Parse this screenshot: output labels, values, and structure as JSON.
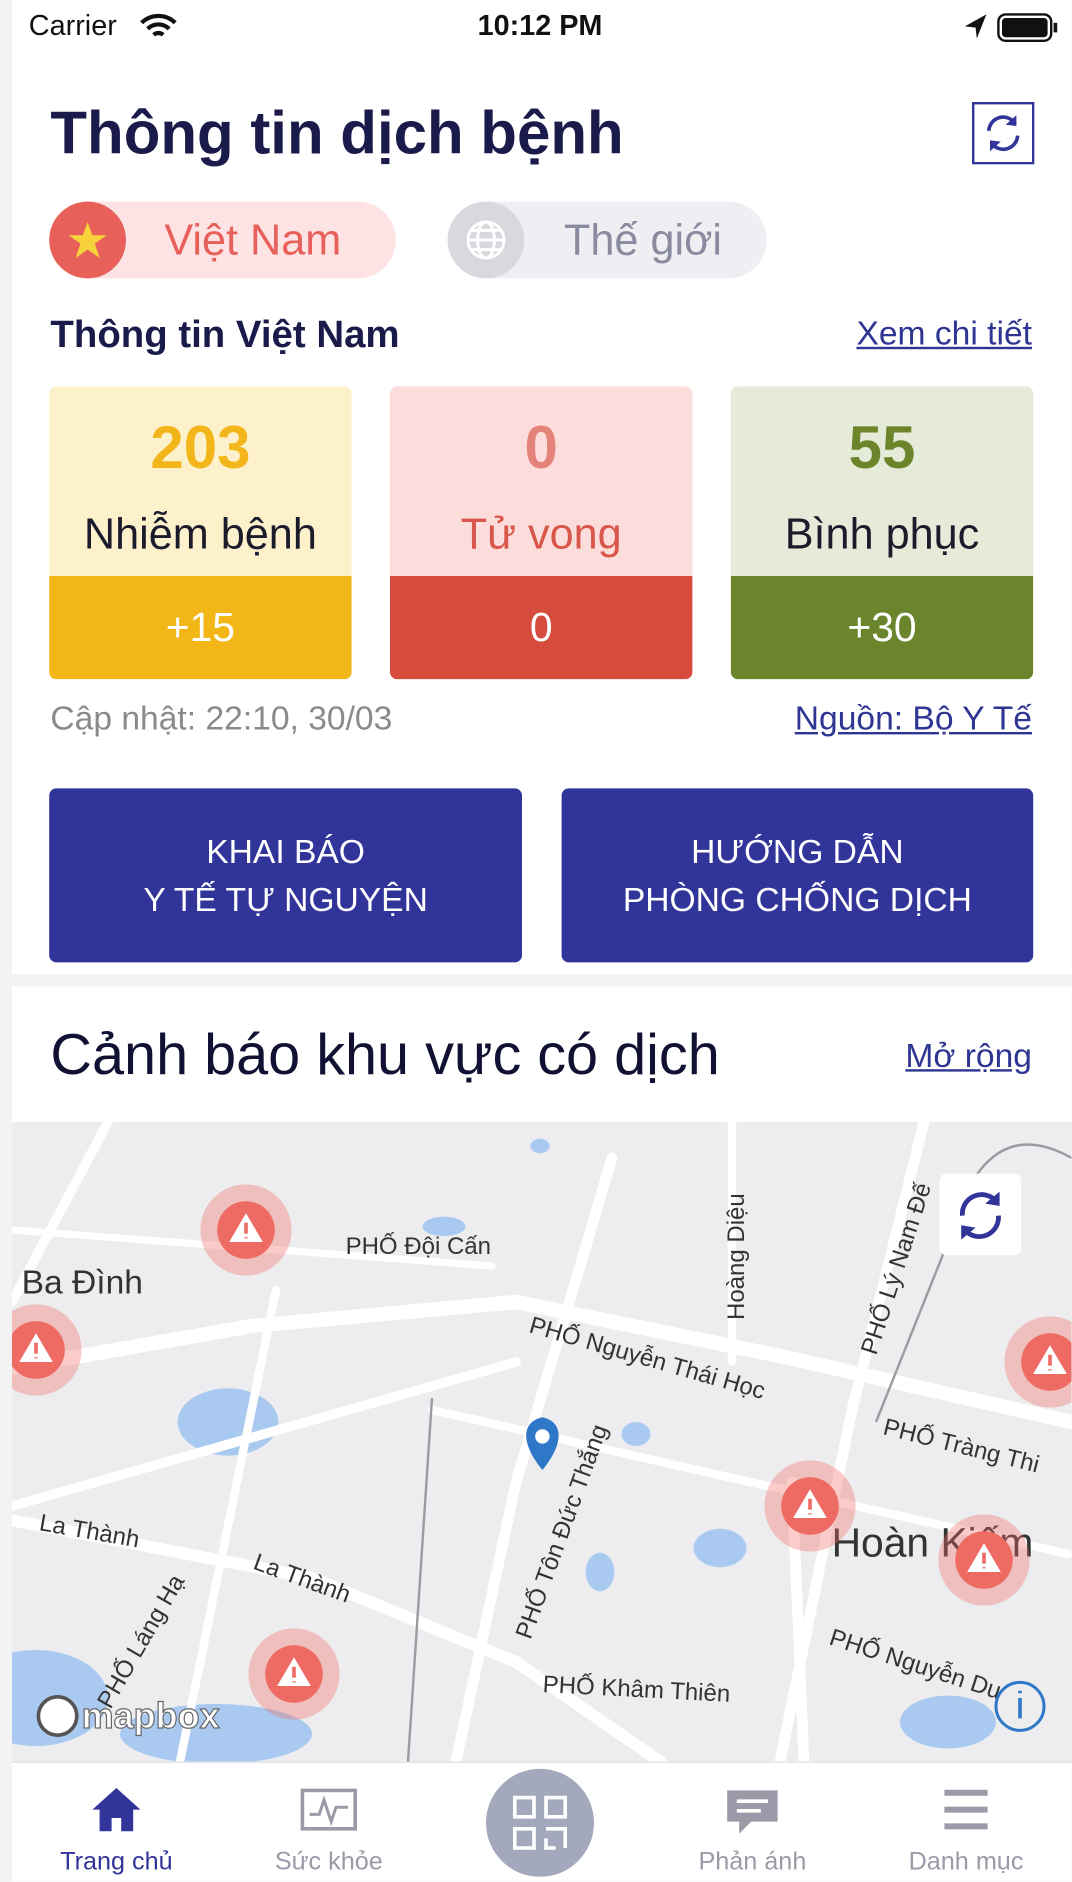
{
  "status_bar": {
    "carrier": "Carrier",
    "time": "10:12 PM"
  },
  "header": {
    "title": "Thông tin dịch bệnh"
  },
  "tabs": [
    "Việt Nam",
    "Thế giới"
  ],
  "summary": {
    "title": "Thông tin Việt Nam",
    "link": "Xem chi tiết",
    "stats": [
      {
        "value": 203,
        "label": "Nhiễm bệnh",
        "change": "+15"
      },
      {
        "value": 0,
        "label": "Tử vong",
        "change": "0"
      },
      {
        "value": 55,
        "label": "Bình phục",
        "change": "+30"
      }
    ],
    "updated": "Cập nhật: 22:10, 30/03",
    "source": "Nguồn: Bộ Y Tế"
  },
  "actions": [
    [
      "KHAI BÁO",
      "Y TẾ TỰ NGUYỆN"
    ],
    [
      "HƯỚNG DẪN",
      "PHÒNG CHỐNG DỊCH"
    ]
  ],
  "map_section": {
    "title": "Cảnh báo khu vực có dịch",
    "link": "Mở rộng",
    "labels": [
      "Ba Đình",
      "PHỐ Đội Cấn",
      "PHỐ Nguyễn Thái Học",
      "Hoàng Diệu",
      "PHỐ Lý Nam Đế",
      "PHỐ Tràng Thi",
      "Hoàn Kiếm",
      "PHỐ Tôn Đức Thắng",
      "La Thành",
      "La Thành",
      "PHỐ Láng Hạ",
      "PHỐ Khâm Thiên",
      "PHỐ Nguyễn Du"
    ],
    "attribution": "mapbox"
  },
  "tab_bar": [
    "Trang chủ",
    "Sức khỏe",
    "Phản ánh",
    "Danh mục"
  ]
}
